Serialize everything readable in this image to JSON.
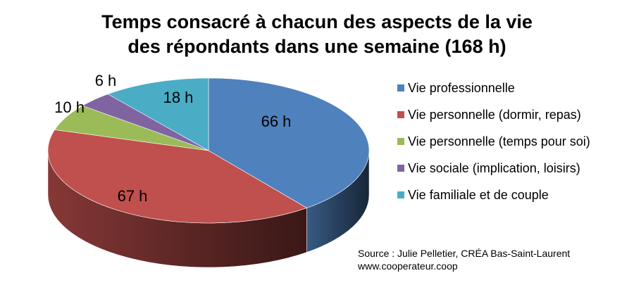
{
  "chart_data": {
    "type": "pie",
    "title_lines": [
      "Temps consacré à chacun des aspects de la vie",
      "des répondants dans une semaine  (168 h)"
    ],
    "slices": [
      {
        "label": "Vie professionnelle",
        "value": 66,
        "value_label": "66 h",
        "color": "#4F81BD"
      },
      {
        "label": "Vie personnelle (dormir, repas)",
        "value": 67,
        "value_label": "67 h",
        "color": "#C0504D"
      },
      {
        "label": "Vie personnelle (temps pour soi)",
        "value": 10,
        "value_label": "10 h",
        "color": "#9BBB59"
      },
      {
        "label": "Vie sociale (implication, loisirs)",
        "value": 6,
        "value_label": "6 h",
        "color": "#8064A2"
      },
      {
        "label": "Vie familiale et de couple",
        "value": 18,
        "value_label": "18 h",
        "color": "#4BACC6"
      }
    ],
    "legend_position": "right",
    "style": "3d"
  },
  "source": {
    "line1": "Source : Julie Pelletier, CRÉA Bas-Saint-Laurent",
    "line2": "www.cooperateur.coop"
  }
}
